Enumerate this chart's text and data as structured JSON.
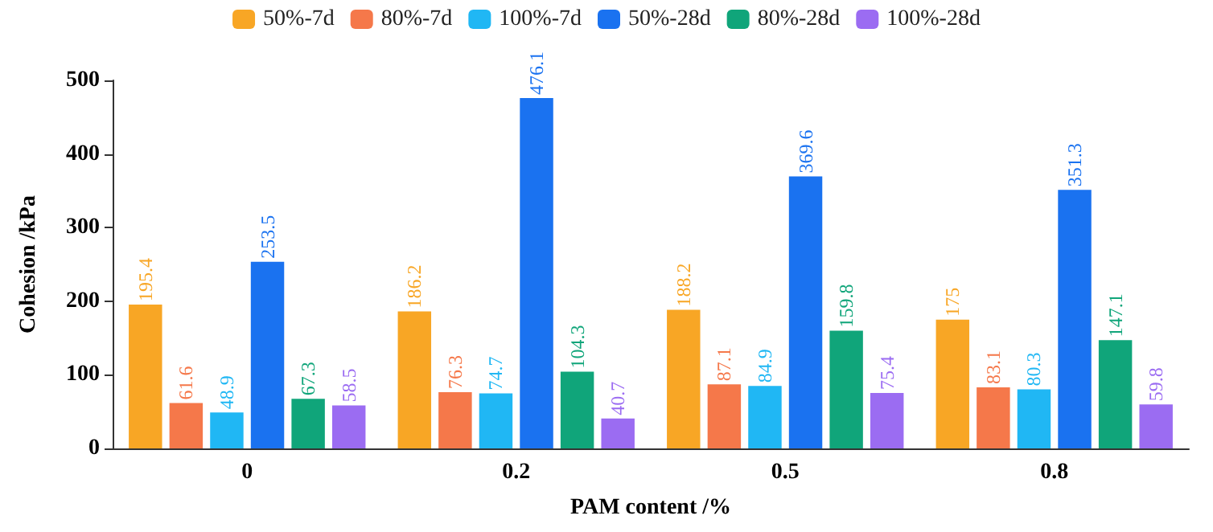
{
  "chart_data": {
    "type": "bar",
    "xlabel": "PAM content /%",
    "ylabel": "Cohesion /kPa",
    "categories": [
      "0",
      "0.2",
      "0.5",
      "0.8"
    ],
    "series": [
      {
        "name": "50%-7d",
        "color": "#f8a625",
        "values": [
          195.4,
          186.2,
          188.2,
          175
        ]
      },
      {
        "name": "80%-7d",
        "color": "#f5784a",
        "values": [
          61.6,
          76.3,
          87.1,
          83.1
        ]
      },
      {
        "name": "100%-7d",
        "color": "#20b7f4",
        "values": [
          48.9,
          74.7,
          84.9,
          80.3
        ]
      },
      {
        "name": "50%-28d",
        "color": "#1a72f0",
        "values": [
          253.5,
          476.1,
          369.6,
          351.3
        ]
      },
      {
        "name": "80%-28d",
        "color": "#10a57a",
        "values": [
          67.3,
          104.3,
          159.8,
          147.1
        ]
      },
      {
        "name": "100%-28d",
        "color": "#9b6cf2",
        "values": [
          58.5,
          40.7,
          75.4,
          59.8
        ]
      }
    ],
    "ylim": [
      0,
      500
    ],
    "yticks": [
      0,
      100,
      200,
      300,
      400,
      500
    ],
    "legend": "top",
    "data_labels": true
  }
}
